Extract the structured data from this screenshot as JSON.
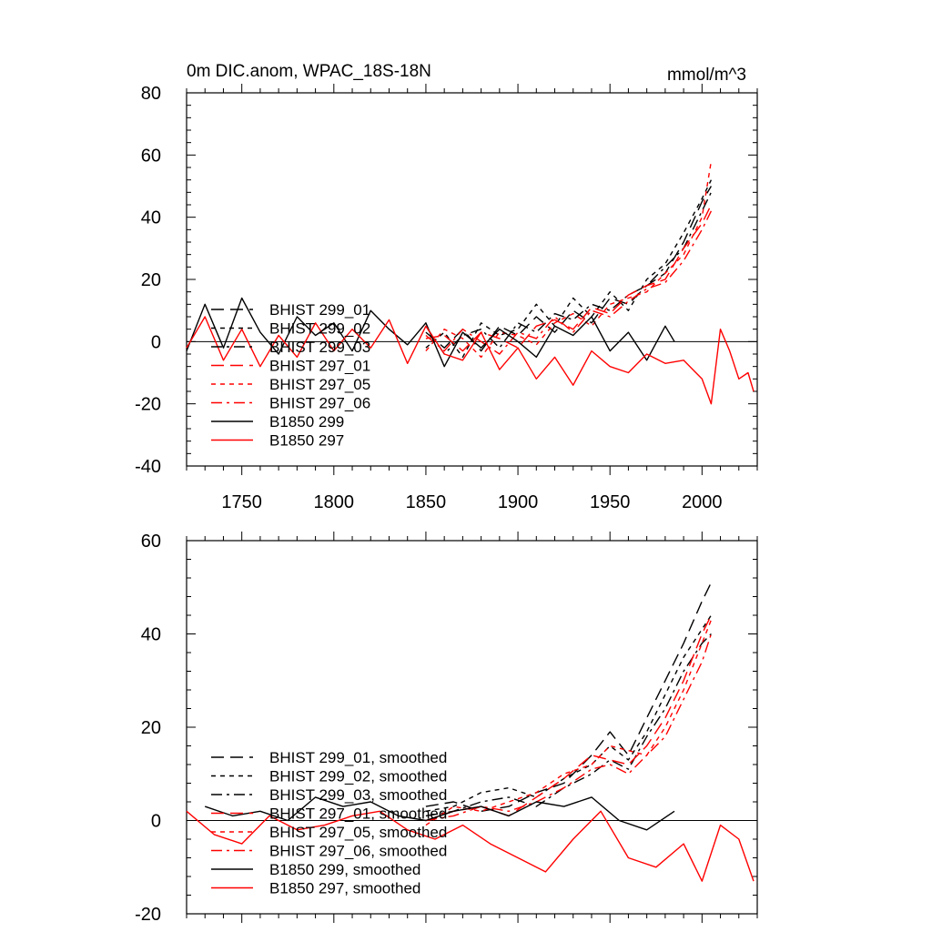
{
  "colors": {
    "black": "#000000",
    "red": "#ff0000"
  },
  "chart_data": [
    {
      "type": "line",
      "title": "0m DIC.anom, WPAC_18S-18N",
      "units": "mmol/m^3",
      "xlim": [
        1720,
        2030
      ],
      "ylim": [
        -40,
        80
      ],
      "xticks": [
        1750,
        1800,
        1850,
        1900,
        1950,
        2000
      ],
      "yticks": [
        -40,
        -20,
        0,
        20,
        40,
        60,
        80
      ],
      "xtick_labels": [
        "1750",
        "1800",
        "1850",
        "1900",
        "1950",
        "2000"
      ],
      "ytick_labels": [
        "-40",
        "-20",
        "0",
        "20",
        "40",
        "60",
        "80"
      ],
      "legend_position": "lower-left",
      "series": [
        {
          "name": "BHIST 299_01",
          "color": "black",
          "dash": "long-dash",
          "x": [
            1850,
            1860,
            1870,
            1880,
            1890,
            1900,
            1910,
            1920,
            1930,
            1940,
            1950,
            1960,
            1970,
            1980,
            1990,
            2000,
            2005
          ],
          "values": [
            3,
            -2,
            4,
            -3,
            5,
            2,
            8,
            3,
            10,
            6,
            14,
            12,
            18,
            22,
            32,
            45,
            50
          ]
        },
        {
          "name": "BHIST 299_02",
          "color": "black",
          "dash": "short-dash",
          "x": [
            1850,
            1860,
            1870,
            1880,
            1890,
            1900,
            1910,
            1920,
            1930,
            1940,
            1950,
            1960,
            1970,
            1980,
            1990,
            2000,
            2005
          ],
          "values": [
            -2,
            3,
            -5,
            6,
            2,
            4,
            12,
            5,
            14,
            8,
            16,
            10,
            20,
            25,
            35,
            46,
            52
          ]
        },
        {
          "name": "BHIST 299_03",
          "color": "black",
          "dash": "dash-dot",
          "x": [
            1850,
            1860,
            1870,
            1880,
            1890,
            1900,
            1910,
            1920,
            1930,
            1940,
            1950,
            1960,
            1970,
            1980,
            1990,
            2000,
            2005
          ],
          "values": [
            5,
            -4,
            2,
            4,
            -2,
            6,
            3,
            9,
            7,
            12,
            10,
            15,
            18,
            24,
            30,
            42,
            48
          ]
        },
        {
          "name": "BHIST 297_01",
          "color": "red",
          "dash": "long-dash",
          "x": [
            1850,
            1860,
            1870,
            1880,
            1890,
            1900,
            1910,
            1920,
            1930,
            1940,
            1950,
            1960,
            1970,
            1980,
            1990,
            2000,
            2005
          ],
          "values": [
            1,
            2,
            -3,
            3,
            1,
            -2,
            5,
            7,
            4,
            11,
            9,
            15,
            18,
            20,
            30,
            38,
            44
          ]
        },
        {
          "name": "BHIST 297_05",
          "color": "red",
          "dash": "short-dash",
          "x": [
            1850,
            1860,
            1870,
            1880,
            1890,
            1900,
            1910,
            1920,
            1930,
            1940,
            1950,
            1960,
            1970,
            1980,
            1990,
            2000,
            2005
          ],
          "values": [
            -3,
            4,
            1,
            -5,
            3,
            2,
            -1,
            6,
            9,
            5,
            12,
            14,
            16,
            22,
            28,
            40,
            58
          ]
        },
        {
          "name": "BHIST 297_06",
          "color": "red",
          "dash": "dash-dot",
          "x": [
            1850,
            1860,
            1870,
            1880,
            1890,
            1900,
            1910,
            1920,
            1930,
            1940,
            1950,
            1960,
            1970,
            1980,
            1990,
            2000,
            2005
          ],
          "values": [
            2,
            -3,
            4,
            0,
            -4,
            3,
            1,
            8,
            3,
            10,
            8,
            13,
            17,
            19,
            26,
            36,
            42
          ]
        },
        {
          "name": "B1850 299",
          "color": "black",
          "dash": "solid",
          "x": [
            1720,
            1730,
            1740,
            1750,
            1760,
            1770,
            1780,
            1790,
            1800,
            1810,
            1820,
            1830,
            1840,
            1850,
            1860,
            1870,
            1880,
            1890,
            1900,
            1910,
            1920,
            1930,
            1940,
            1950,
            1960,
            1970,
            1980,
            1985
          ],
          "values": [
            -3,
            12,
            -2,
            14,
            3,
            -4,
            8,
            2,
            6,
            -3,
            10,
            4,
            -1,
            6,
            -8,
            3,
            -2,
            4,
            0,
            -5,
            5,
            2,
            8,
            -3,
            3,
            -6,
            5,
            0
          ]
        },
        {
          "name": "B1850 297",
          "color": "red",
          "dash": "solid",
          "x": [
            1720,
            1730,
            1740,
            1750,
            1760,
            1770,
            1780,
            1790,
            1800,
            1810,
            1820,
            1830,
            1840,
            1850,
            1860,
            1870,
            1880,
            1890,
            1900,
            1910,
            1920,
            1930,
            1940,
            1950,
            1960,
            1970,
            1980,
            1990,
            2000,
            2005,
            2010,
            2015,
            2020,
            2025,
            2028
          ],
          "values": [
            -2,
            8,
            -6,
            4,
            -8,
            2,
            -5,
            6,
            -3,
            4,
            -2,
            7,
            -7,
            5,
            -4,
            -6,
            3,
            -9,
            -2,
            -12,
            -5,
            -14,
            -3,
            -8,
            -10,
            -4,
            -7,
            -6,
            -12,
            -20,
            4,
            -3,
            -12,
            -10,
            -16
          ]
        }
      ]
    },
    {
      "type": "line",
      "title": "",
      "xlim": [
        1720,
        2030
      ],
      "ylim": [
        -20,
        60
      ],
      "xticks": [
        1750,
        1800,
        1850,
        1900,
        1950,
        2000
      ],
      "yticks": [
        -20,
        0,
        20,
        40,
        60
      ],
      "ytick_labels": [
        "-20",
        "0",
        "20",
        "40",
        "60"
      ],
      "legend_position": "lower-left",
      "series": [
        {
          "name": "BHIST 299_01, smoothed",
          "color": "black",
          "dash": "long-dash",
          "x": [
            1850,
            1865,
            1880,
            1895,
            1910,
            1925,
            1940,
            1950,
            1960,
            1970,
            1980,
            1990,
            2000,
            2005
          ],
          "values": [
            3,
            4,
            2,
            3,
            6,
            8,
            14,
            19,
            14,
            22,
            30,
            38,
            47,
            51
          ]
        },
        {
          "name": "BHIST 299_02, smoothed",
          "color": "black",
          "dash": "short-dash",
          "x": [
            1850,
            1865,
            1880,
            1895,
            1910,
            1925,
            1940,
            1950,
            1960,
            1970,
            1980,
            1990,
            2000,
            2005
          ],
          "values": [
            2,
            3,
            6,
            7,
            5,
            9,
            12,
            16,
            13,
            19,
            27,
            35,
            41,
            44
          ]
        },
        {
          "name": "BHIST 299_03, smoothed",
          "color": "black",
          "dash": "dash-dot",
          "x": [
            1850,
            1865,
            1880,
            1895,
            1910,
            1925,
            1940,
            1950,
            1960,
            1970,
            1980,
            1990,
            2000,
            2005
          ],
          "values": [
            1,
            2,
            4,
            5,
            3,
            7,
            10,
            13,
            11,
            18,
            24,
            32,
            38,
            40
          ]
        },
        {
          "name": "BHIST 297_01, smoothed",
          "color": "red",
          "dash": "long-dash",
          "x": [
            1850,
            1865,
            1880,
            1895,
            1910,
            1925,
            1940,
            1950,
            1960,
            1970,
            1980,
            1990,
            2000,
            2005
          ],
          "values": [
            0,
            2,
            3,
            1,
            5,
            9,
            14,
            13,
            12,
            16,
            22,
            30,
            40,
            44
          ]
        },
        {
          "name": "BHIST 297_05, smoothed",
          "color": "red",
          "dash": "short-dash",
          "x": [
            1850,
            1865,
            1880,
            1895,
            1910,
            1925,
            1940,
            1950,
            1960,
            1970,
            1980,
            1990,
            2000,
            2005
          ],
          "values": [
            -1,
            3,
            2,
            4,
            6,
            10,
            12,
            16,
            15,
            14,
            20,
            28,
            38,
            43
          ]
        },
        {
          "name": "BHIST 297_06, smoothed",
          "color": "red",
          "dash": "dash-dot",
          "x": [
            1850,
            1865,
            1880,
            1895,
            1910,
            1925,
            1940,
            1950,
            1960,
            1970,
            1980,
            1990,
            2000,
            2005
          ],
          "values": [
            0,
            1,
            3,
            2,
            4,
            7,
            11,
            12,
            10,
            14,
            18,
            26,
            34,
            40
          ]
        },
        {
          "name": "B1850 299, smoothed",
          "color": "black",
          "dash": "solid",
          "x": [
            1730,
            1745,
            1760,
            1775,
            1790,
            1805,
            1820,
            1835,
            1850,
            1865,
            1880,
            1895,
            1910,
            1925,
            1940,
            1955,
            1970,
            1985
          ],
          "values": [
            3,
            1,
            2,
            0,
            5,
            3,
            4,
            1,
            0,
            2,
            3,
            1,
            4,
            3,
            5,
            0,
            -2,
            2
          ]
        },
        {
          "name": "B1850 297, smoothed",
          "color": "red",
          "dash": "solid",
          "x": [
            1720,
            1735,
            1750,
            1765,
            1780,
            1795,
            1810,
            1825,
            1840,
            1855,
            1870,
            1885,
            1900,
            1915,
            1930,
            1945,
            1960,
            1975,
            1990,
            2000,
            2010,
            2020,
            2028
          ],
          "values": [
            2,
            -3,
            -5,
            1,
            -2,
            -1,
            1,
            2,
            -2,
            -4,
            -1,
            -5,
            -8,
            -11,
            -4,
            2,
            -8,
            -10,
            -5,
            -13,
            -1,
            -4,
            -13
          ]
        }
      ]
    }
  ]
}
